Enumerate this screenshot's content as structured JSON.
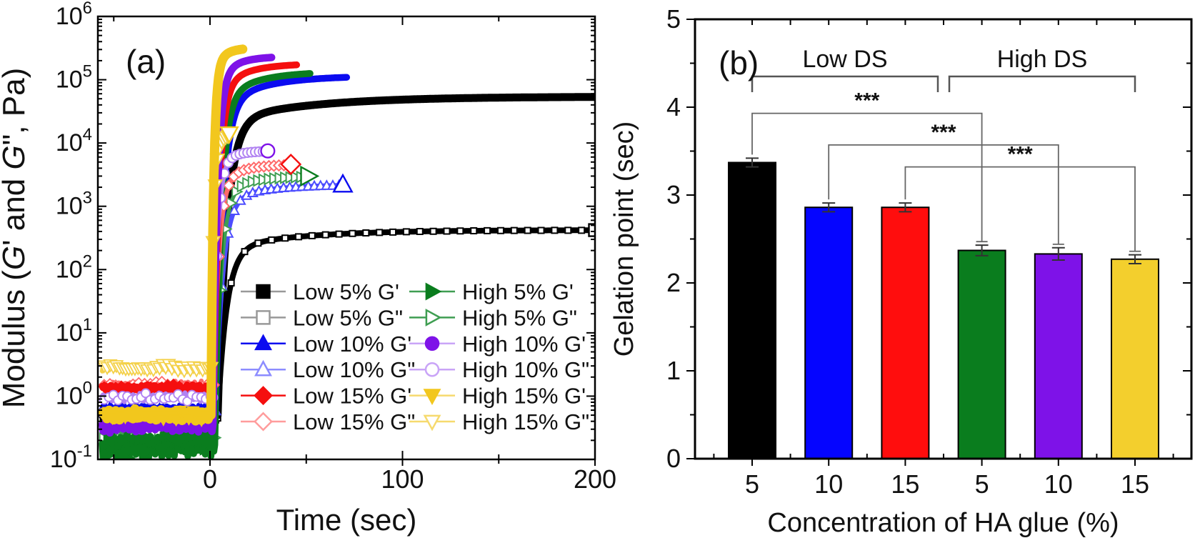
{
  "figure": {
    "background": "#ffffff",
    "description": "Two-panel rheology figure"
  },
  "chart_data": [
    {
      "panel_label": "(a)",
      "type": "line",
      "xlabel": "Time (sec)",
      "ylabel_plain": "Modulus (G' and G\", Pa)",
      "ylabel_parts": [
        {
          "t": "Modulus (",
          "i": false
        },
        {
          "t": "G",
          "i": true
        },
        {
          "t": "' and ",
          "i": false
        },
        {
          "t": "G",
          "i": true
        },
        {
          "t": "\", Pa)",
          "i": false
        }
      ],
      "xlim": [
        -58,
        200
      ],
      "x_major_ticks": [
        {
          "value": 0,
          "label": "0"
        },
        {
          "value": 100,
          "label": "100"
        },
        {
          "value": 200,
          "label": "200"
        }
      ],
      "x_minor_ticks": [
        -50,
        50,
        150
      ],
      "y_scale": "log",
      "y_log_range": [
        -1,
        6
      ],
      "y_tick_base": "10",
      "y_tick_exponents": [
        "6",
        "5",
        "4",
        "3",
        "2",
        "1",
        "0",
        "-1"
      ],
      "grid": false,
      "legend_position": "inside lower-right, two columns",
      "draw_order": [
        1,
        0,
        3,
        2,
        7,
        6,
        5,
        4,
        9,
        8,
        11,
        10
      ],
      "series": [
        {
          "label": "Low 5% G'",
          "color": "#000000",
          "line_color": "#000000",
          "legend_line": "#999999",
          "marker": "square",
          "filled": true,
          "baseline": 0.5,
          "plateau": 54000,
          "t0": 4,
          "tau1": 4.6,
          "d2": 0.4,
          "tau2": 45,
          "t_end": 200,
          "lw": 11,
          "noise": 0.05,
          "mstep": 3.4,
          "msize": 7
        },
        {
          "label": "Low 5% G\"",
          "color": "#000000",
          "line_color": "#000000",
          "legend_line": "#999999",
          "marker": "square",
          "filled": false,
          "baseline": 0.45,
          "plateau": 420,
          "t0": 4,
          "tau1": 4.6,
          "d2": 0.3,
          "tau2": 40,
          "t_end": 200,
          "lw": 8,
          "noise": 0.06,
          "mstep": 3.4,
          "msize": 6,
          "rstep": 7,
          "rsize": 5,
          "end_size": 10
        },
        {
          "label": "Low 10% G'",
          "color": "#0b0bf0",
          "line_color": "#0b0bf0",
          "legend_line": "#0b0bf0",
          "marker": "triangle-up",
          "filled": true,
          "baseline": 0.62,
          "plateau": 115000,
          "t0": 3,
          "tau1": 3.6,
          "d2": 0.5,
          "tau2": 22,
          "t_end": 71,
          "lw": 9.5,
          "noise": 0.07,
          "mstep": 3.2,
          "msize": 7
        },
        {
          "label": "Low 10% G\"",
          "color": "#0b0bf0",
          "line_color": "#4d4dff",
          "legend_line": "#8c8cff",
          "marker": "triangle-up",
          "filled": false,
          "baseline": 0.58,
          "plateau": 2200,
          "t0": 3,
          "tau1": 3.6,
          "d2": 0.3,
          "tau2": 20,
          "t_end": 69,
          "lw": 6.5,
          "noise": 0.07,
          "mstep": 3.2,
          "msize": 7,
          "rstep": 3.2,
          "rsize": 7,
          "end_size": 13
        },
        {
          "label": "Low 15% G'",
          "color": "#f50f0f",
          "line_color": "#f50f0f",
          "legend_line": "#f50f0f",
          "marker": "diamond",
          "filled": true,
          "baseline": 1.35,
          "plateau": 180000,
          "t0": 2,
          "tau1": 2.7,
          "d2": 0.45,
          "tau2": 14,
          "t_end": 45,
          "lw": 9.5,
          "noise": 0.06,
          "mstep": 3.0,
          "msize": 7
        },
        {
          "label": "Low 15% G\"",
          "color": "#f50f0f",
          "line_color": "#ff6a6a",
          "legend_line": "#ff9c9c",
          "marker": "diamond",
          "filled": false,
          "baseline": 1.5,
          "plateau": 4600,
          "t0": 2,
          "tau1": 2.7,
          "d2": 0.3,
          "tau2": 12,
          "t_end": 42,
          "lw": 6.5,
          "noise": 0.07,
          "mstep": 3.0,
          "msize": 7,
          "rstep": 2.6,
          "rsize": 7,
          "end_size": 12
        },
        {
          "label": "High 5% G'",
          "color": "#0a7d1e",
          "line_color": "#0a7d1e",
          "legend_line": "#3f9e52",
          "marker": "triangle-right",
          "filled": true,
          "baseline": 0.17,
          "plateau": 135000,
          "t0": 2.5,
          "tau1": 3.1,
          "d2": 0.5,
          "tau2": 18,
          "t_end": 52,
          "lw": 9.5,
          "noise": 0.26,
          "mstep": 2.6,
          "msize": 8
        },
        {
          "label": "High 5% G\"",
          "color": "#0a7d1e",
          "line_color": "#3f9e52",
          "legend_line": "#3f9e52",
          "marker": "triangle-right",
          "filled": false,
          "baseline": 0.22,
          "plateau": 3000,
          "t0": 2.5,
          "tau1": 3.1,
          "d2": 0.3,
          "tau2": 15,
          "t_end": 51,
          "lw": 5.5,
          "noise": 0.22,
          "mstep": 2.2,
          "msize": 9,
          "rstep": 2.8,
          "rsize": 8,
          "end_size": 13
        },
        {
          "label": "High 10% G'",
          "color": "#7e12e8",
          "line_color": "#7e12e8",
          "legend_line": "#c9a4f7",
          "marker": "circle",
          "filled": true,
          "baseline": 0.35,
          "plateau": 235000,
          "t0": 1.5,
          "tau1": 2.2,
          "d2": 0.4,
          "tau2": 10,
          "t_end": 32,
          "lw": 10.5,
          "noise": 0.13,
          "mstep": 2.8,
          "msize": 8
        },
        {
          "label": "High 10% G\"",
          "color": "#7e12e8",
          "line_color": "#b183f2",
          "legend_line": "#c9a4f7",
          "marker": "circle",
          "filled": false,
          "baseline": 0.95,
          "plateau": 7500,
          "t0": 1.5,
          "tau1": 2.2,
          "d2": 0.25,
          "tau2": 8,
          "t_end": 30,
          "lw": 6.5,
          "noise": 0.08,
          "mstep": 2.4,
          "msize": 8,
          "rstep": 2.0,
          "rsize": 8,
          "end_size": 11
        },
        {
          "label": "High 15% G'",
          "color": "#f2c71d",
          "line_color": "#f2c71d",
          "legend_line": "#f6da6e",
          "marker": "triangle-down",
          "filled": true,
          "baseline": 0.5,
          "plateau": 320000,
          "t0": 0.5,
          "tau1": 1.35,
          "d2": 0.35,
          "tau2": 6,
          "t_end": 17,
          "lw": 13,
          "noise": 0.1,
          "mstep": 2.2,
          "msize": 9
        },
        {
          "label": "High 15% G\"",
          "color": "#f2c71d",
          "line_color": "#f4d14a",
          "legend_line": "#f6da6e",
          "marker": "triangle-down",
          "filled": false,
          "baseline": 2.8,
          "plateau": 14000,
          "t0": 0.5,
          "tau1": 1.35,
          "d2": 0.2,
          "tau2": 5,
          "t_end": 10,
          "lw": 6.5,
          "noise": 0.06,
          "mstep": 1.6,
          "msize": 10,
          "rstep": 1.1,
          "rsize": 10,
          "end_size": 12
        }
      ]
    },
    {
      "panel_label": "(b)",
      "type": "bar",
      "xlabel": "Concentration of HA glue (%)",
      "ylabel": "Gelation point (sec)",
      "ylim": [
        0,
        5
      ],
      "y_major_step": 1,
      "y_minor_step": 0.5,
      "y_tick_labels": [
        "0",
        "1",
        "2",
        "3",
        "4",
        "5"
      ],
      "categories": [
        "5",
        "10",
        "15",
        "5",
        "10",
        "15"
      ],
      "values": [
        3.37,
        2.86,
        2.86,
        2.37,
        2.33,
        2.27
      ],
      "errors": [
        0.05,
        0.05,
        0.05,
        0.06,
        0.07,
        0.05
      ],
      "bar_colors": [
        "#000000",
        "#0505ff",
        "#ff0d0d",
        "#0a7d1e",
        "#7e12e8",
        "#f3cf2d"
      ],
      "grid": false,
      "group_brackets": [
        {
          "label": "Low DS",
          "start": 0,
          "end": 2
        },
        {
          "label": "High DS",
          "start": 3,
          "end": 5
        }
      ],
      "significance": [
        {
          "label": "***",
          "from": 0,
          "to": 3,
          "line_y": 3.93,
          "left_bottom": 3.46,
          "right_bottom": 2.47
        },
        {
          "label": "***",
          "from": 1,
          "to": 4,
          "line_y": 3.57,
          "left_bottom": 2.95,
          "right_bottom": 2.44
        },
        {
          "label": "***",
          "from": 2,
          "to": 5,
          "line_y": 3.32,
          "left_bottom": 2.95,
          "right_bottom": 2.36
        }
      ]
    }
  ]
}
